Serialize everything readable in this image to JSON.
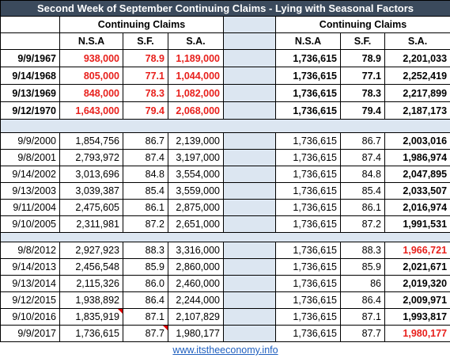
{
  "title": "Second Week of September Continuing Claims - Lying with Seasonal Factors",
  "header": {
    "group_left": "Continuing Claims",
    "group_right": "Continuing Claims",
    "columns_left": [
      "N.S.A",
      "S.F.",
      "S.A."
    ],
    "columns_right": [
      "N.S.A",
      "S.F.",
      "S.A."
    ]
  },
  "groups": [
    {
      "rows": [
        {
          "date": "9/9/1967",
          "left": [
            "938,000",
            "78.9",
            "1,189,000"
          ],
          "right": [
            "1,736,615",
            "78.9",
            "2,201,033"
          ]
        },
        {
          "date": "9/14/1968",
          "left": [
            "805,000",
            "77.1",
            "1,044,000"
          ],
          "right": [
            "1,736,615",
            "77.1",
            "2,252,419"
          ]
        },
        {
          "date": "9/13/1969",
          "left": [
            "848,000",
            "78.3",
            "1,082,000"
          ],
          "right": [
            "1,736,615",
            "78.3",
            "2,217,899"
          ]
        },
        {
          "date": "9/12/1970",
          "left": [
            "1,643,000",
            "79.4",
            "2,068,000"
          ],
          "right": [
            "1,736,615",
            "79.4",
            "2,187,173"
          ]
        }
      ]
    },
    {
      "rows": [
        {
          "date": "9/9/2000",
          "left": [
            "1,854,756",
            "86.7",
            "2,139,000"
          ],
          "right": [
            "1,736,615",
            "86.7",
            "2,003,016"
          ]
        },
        {
          "date": "9/8/2001",
          "left": [
            "2,793,972",
            "87.4",
            "3,197,000"
          ],
          "right": [
            "1,736,615",
            "87.4",
            "1,986,974"
          ]
        },
        {
          "date": "9/14/2002",
          "left": [
            "3,013,696",
            "84.8",
            "3,554,000"
          ],
          "right": [
            "1,736,615",
            "84.8",
            "2,047,895"
          ]
        },
        {
          "date": "9/13/2003",
          "left": [
            "3,039,387",
            "85.4",
            "3,559,000"
          ],
          "right": [
            "1,736,615",
            "85.4",
            "2,033,507"
          ]
        },
        {
          "date": "9/11/2004",
          "left": [
            "2,475,605",
            "86.1",
            "2,875,000"
          ],
          "right": [
            "1,736,615",
            "86.1",
            "2,016,974"
          ]
        },
        {
          "date": "9/10/2005",
          "left": [
            "2,311,981",
            "87.2",
            "2,651,000"
          ],
          "right": [
            "1,736,615",
            "87.2",
            "1,991,531"
          ]
        }
      ]
    },
    {
      "rows": [
        {
          "date": "9/8/2012",
          "left": [
            "2,927,923",
            "88.3",
            "3,316,000"
          ],
          "right": [
            "1,736,615",
            "88.3",
            "1,966,721"
          ]
        },
        {
          "date": "9/14/2013",
          "left": [
            "2,456,548",
            "85.9",
            "2,860,000"
          ],
          "right": [
            "1,736,615",
            "85.9",
            "2,021,671"
          ]
        },
        {
          "date": "9/13/2014",
          "left": [
            "2,115,326",
            "86.0",
            "2,460,000"
          ],
          "right": [
            "1,736,615",
            "86",
            "2,019,320"
          ]
        },
        {
          "date": "9/12/2015",
          "left": [
            "1,938,892",
            "86.4",
            "2,244,000"
          ],
          "right": [
            "1,736,615",
            "86.4",
            "2,009,971"
          ]
        },
        {
          "date": "9/10/2016",
          "left": [
            "1,835,919",
            "87.1",
            "2,107,829"
          ],
          "right": [
            "1,736,615",
            "87.1",
            "1,993,817"
          ]
        },
        {
          "date": "9/9/2017",
          "left": [
            "1,736,615",
            "87.7",
            "1,980,177"
          ],
          "right": [
            "1,736,615",
            "87.7",
            "1,980,177"
          ]
        }
      ]
    }
  ],
  "footer": "www.itstheeconomy.info"
}
